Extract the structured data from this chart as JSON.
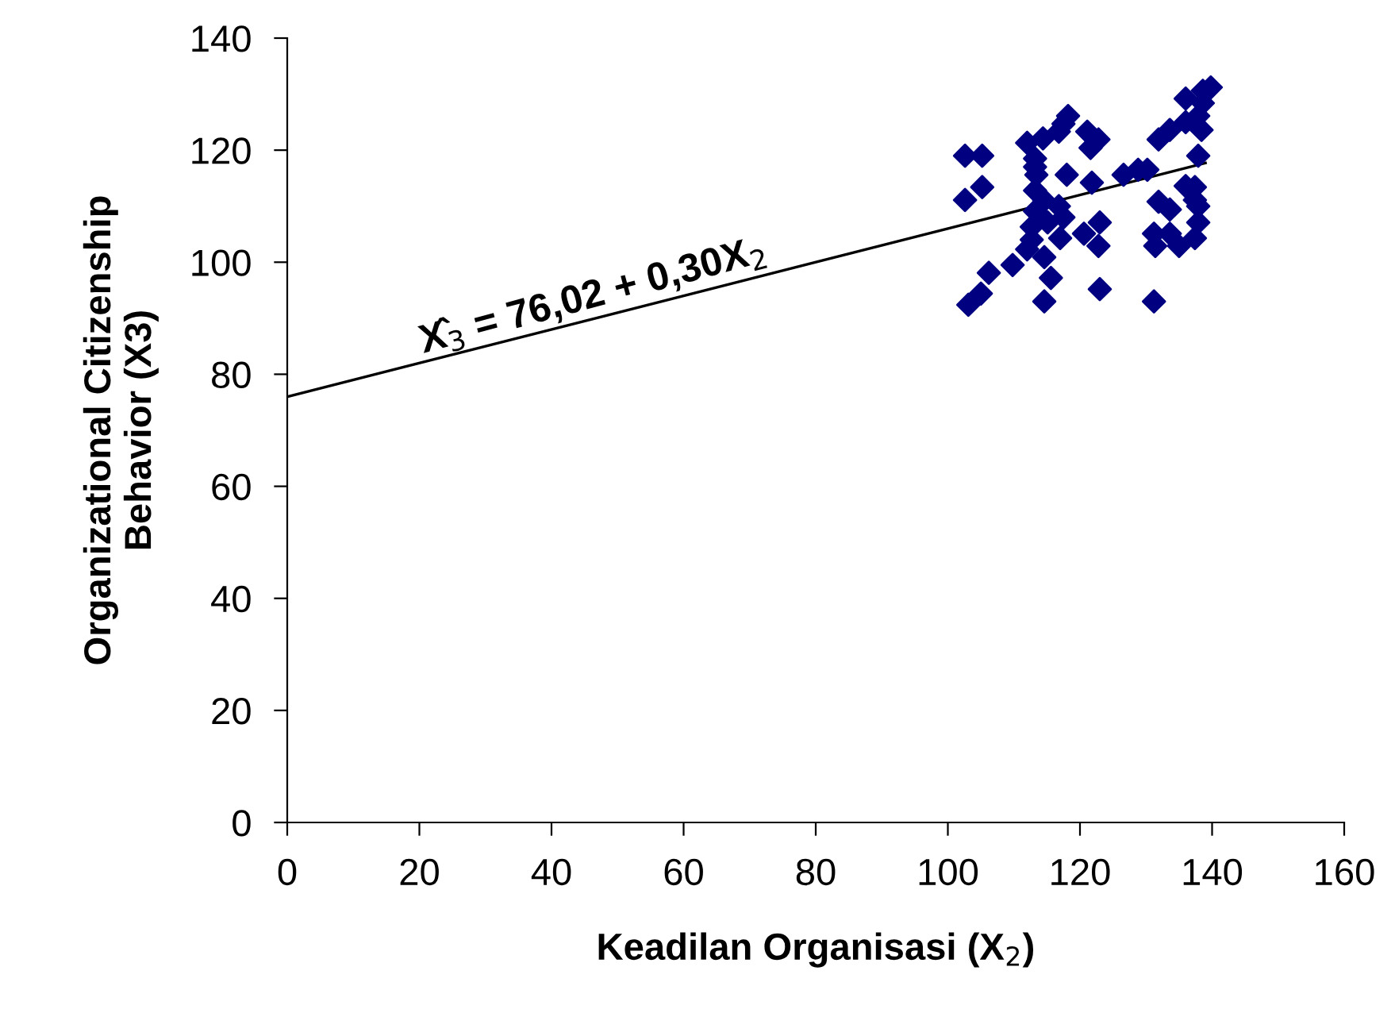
{
  "chart_data": {
    "type": "scatter",
    "xlabel": "Keadilan Organisasi (X$_{2}$)",
    "ylabel": "Organizational Citizenship\nBehavior (X3)",
    "xlim": [
      0,
      160
    ],
    "xticks": [
      0,
      20,
      40,
      60,
      80,
      100,
      120,
      140,
      160
    ],
    "ylim": [
      0,
      140
    ],
    "yticks": [
      0,
      20,
      40,
      60,
      80,
      100,
      120,
      140
    ],
    "grid": false,
    "legend": false,
    "series": [
      {
        "marker": "diamond",
        "color": "#000080",
        "x": [
          102.6,
          105.2,
          105.2,
          102.6,
          106.2,
          115.6,
          123.0,
          131.2,
          114.6,
          103.1,
          105.0,
          109.8,
          114.6,
          117.0,
          112.0,
          120.6,
          122.8,
          123.0,
          121.8,
          118.0,
          118.2,
          121.1,
          122.8,
          121.6,
          112.0,
          114.4,
          116.8,
          117.5,
          113.2,
          113.4,
          113.2,
          113.2,
          112.7,
          115.1,
          116.8,
          117.5,
          126.6,
          128.8,
          130.2,
          131.9,
          133.6,
          136.0,
          138.6,
          136.0,
          137.9,
          138.4,
          131.9,
          133.6,
          136.0,
          137.4,
          131.2,
          133.6,
          135.0,
          137.4,
          137.9,
          131.4,
          139.8,
          138.6,
          137.9,
          137.4,
          137.9,
          113.2,
          114.6,
          112.7
        ],
        "values": [
          119.0,
          119.0,
          113.4,
          111.1,
          98.1,
          97.2,
          95.2,
          93.0,
          93.0,
          92.4,
          94.4,
          99.5,
          100.9,
          104.3,
          102.3,
          105.1,
          102.9,
          107.1,
          114.2,
          115.6,
          126.1,
          123.3,
          121.9,
          120.4,
          121.3,
          122.1,
          123.3,
          124.7,
          118.5,
          115.6,
          112.8,
          109.1,
          106.3,
          107.1,
          110.0,
          108.0,
          115.6,
          116.5,
          116.5,
          121.9,
          123.6,
          129.2,
          130.6,
          125.0,
          126.1,
          123.6,
          110.8,
          109.4,
          113.6,
          111.1,
          105.1,
          105.1,
          102.9,
          104.3,
          107.1,
          102.9,
          131.2,
          128.4,
          119.0,
          113.4,
          110.0,
          117.0,
          111.0,
          104.0
        ]
      },
      {
        "type": "line",
        "marker": "none",
        "color": "#000000",
        "x": [
          0,
          139
        ],
        "values": [
          76.0,
          117.7
        ]
      }
    ],
    "annotations": [
      "X̂$_{3}$ = 76,02 + 0,30X$_{2}$"
    ]
  }
}
